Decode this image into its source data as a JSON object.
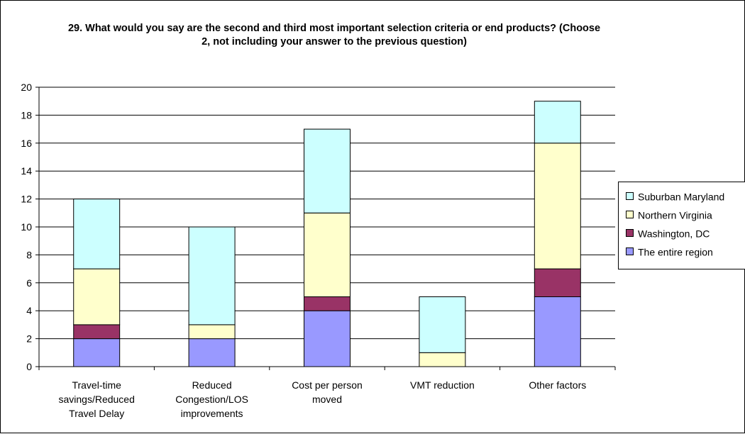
{
  "chart_data": {
    "type": "bar",
    "stacked": true,
    "title": "29. What would you say are the second and third most important selection criteria or end products?  (Choose 2, not including your answer to the previous question)",
    "categories": [
      "Travel-time savings/Reduced Travel Delay",
      "Reduced Congestion/LOS improvements",
      "Cost per person moved",
      "VMT reduction",
      "Other factors"
    ],
    "category_label_lines": [
      [
        "Travel-time",
        "savings/Reduced",
        "Travel Delay"
      ],
      [
        "Reduced",
        "Congestion/LOS",
        "improvements"
      ],
      [
        "Cost per person",
        "moved"
      ],
      [
        "VMT reduction"
      ],
      [
        "Other factors"
      ]
    ],
    "series": [
      {
        "name": "The entire region",
        "color": "#9999ff",
        "values": [
          2,
          2,
          4,
          0,
          5
        ]
      },
      {
        "name": "Washington, DC",
        "color": "#993366",
        "values": [
          1,
          0,
          1,
          0,
          2
        ]
      },
      {
        "name": "Northern Virginia",
        "color": "#ffffcc",
        "values": [
          4,
          1,
          6,
          1,
          9
        ]
      },
      {
        "name": "Suburban Maryland",
        "color": "#ccffff",
        "values": [
          5,
          7,
          6,
          4,
          3
        ]
      }
    ],
    "legend_order": [
      "Suburban Maryland",
      "Northern Virginia",
      "Washington, DC",
      "The entire region"
    ],
    "xlabel": "",
    "ylabel": "",
    "ylim": [
      0,
      20
    ],
    "yticks": [
      0,
      2,
      4,
      6,
      8,
      10,
      12,
      14,
      16,
      18,
      20
    ],
    "grid": true,
    "legend_position": "right"
  }
}
